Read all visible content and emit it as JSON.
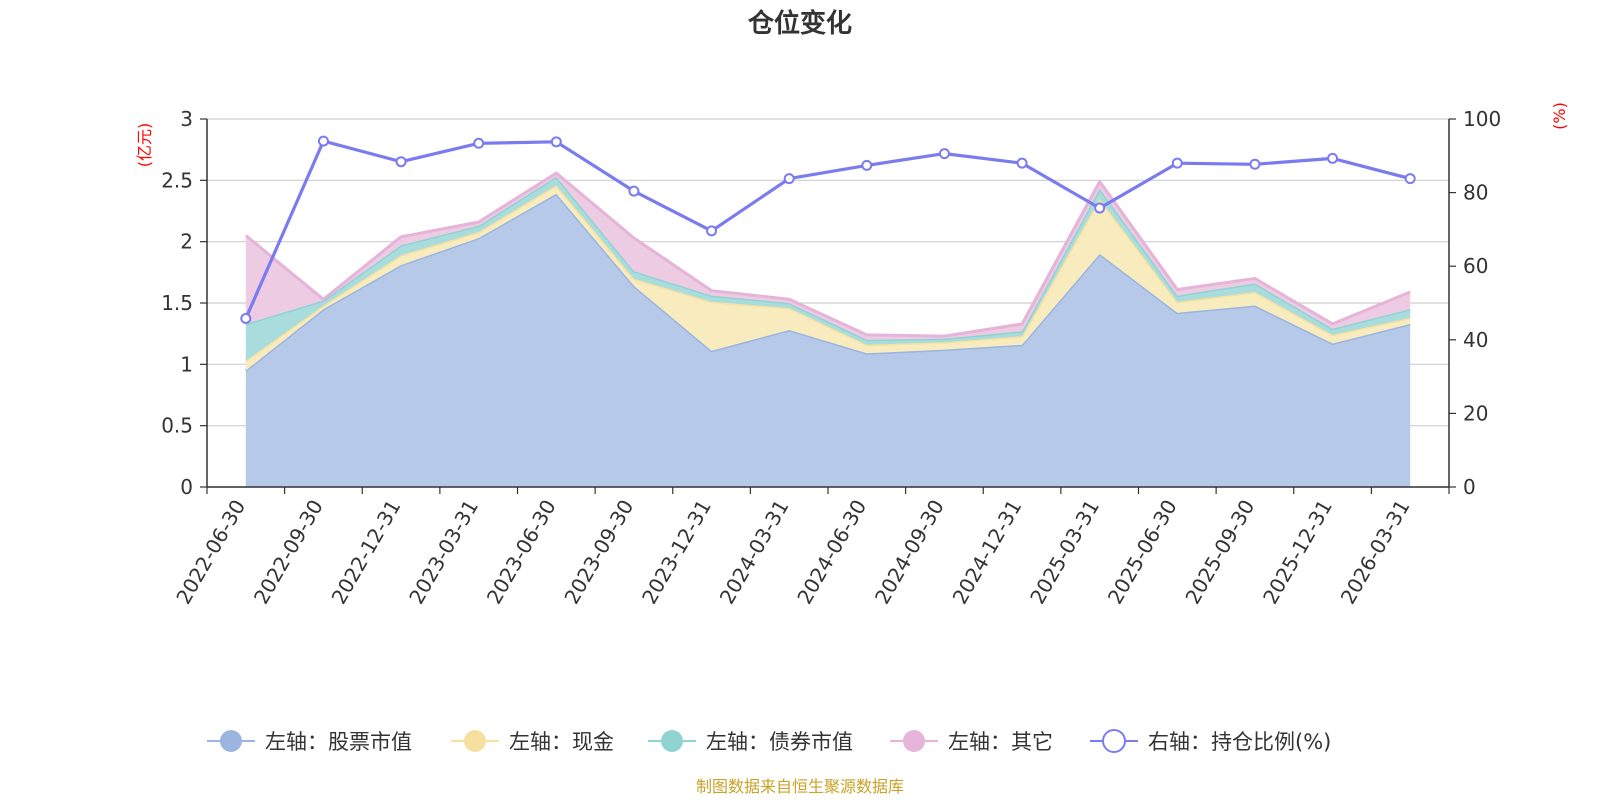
{
  "chart_data": {
    "type": "area",
    "title": "仓位变化",
    "categories": [
      "2022-06-30",
      "2022-09-30",
      "2022-12-31",
      "2023-03-31",
      "2023-06-30",
      "2023-09-30",
      "2023-12-31",
      "2024-03-31",
      "2024-06-30",
      "2024-09-30",
      "2024-12-31",
      "2025-03-31",
      "2025-06-30",
      "2025-09-30",
      "2025-12-31",
      "2026-03-31"
    ],
    "left_axis": {
      "unit_label": "(亿元)",
      "min": 0,
      "max": 3,
      "ticks": [
        "0",
        "0.5",
        "1",
        "1.5",
        "2",
        "2.5",
        "3"
      ],
      "tick_values": [
        0,
        0.5,
        1,
        1.5,
        2,
        2.5,
        3
      ]
    },
    "right_axis": {
      "unit_label": "(%)",
      "min": 0,
      "max": 100,
      "ticks": [
        "0",
        "20",
        "40",
        "60",
        "80",
        "100"
      ],
      "tick_values": [
        0,
        20,
        40,
        60,
        80,
        100
      ]
    },
    "series": [
      {
        "name": "左轴：股票市值",
        "axis": "left",
        "kind": "stacked-area",
        "color": "#9bb5e0",
        "fill": "#b6c9e9",
        "values": [
          0.95,
          1.45,
          1.81,
          2.03,
          2.39,
          1.64,
          1.11,
          1.28,
          1.09,
          1.12,
          1.16,
          1.9,
          1.42,
          1.48,
          1.17,
          1.33
        ]
      },
      {
        "name": "左轴：现金",
        "axis": "left",
        "kind": "stacked-area",
        "color": "#f6e0a0",
        "fill": "#f8ecbf",
        "values": [
          0.08,
          0.03,
          0.08,
          0.05,
          0.07,
          0.06,
          0.4,
          0.18,
          0.07,
          0.06,
          0.07,
          0.45,
          0.09,
          0.11,
          0.07,
          0.05
        ]
      },
      {
        "name": "左轴：债券市值",
        "axis": "left",
        "kind": "stacked-area",
        "color": "#8fd3d3",
        "fill": "#a9dcdc",
        "values": [
          0.3,
          0.04,
          0.08,
          0.05,
          0.07,
          0.06,
          0.05,
          0.04,
          0.04,
          0.03,
          0.04,
          0.08,
          0.05,
          0.07,
          0.05,
          0.07
        ]
      },
      {
        "name": "左轴：其它",
        "axis": "left",
        "kind": "stacked-area",
        "color": "#e6b3d9",
        "fill": "#edcbe3",
        "values": [
          0.72,
          0.01,
          0.07,
          0.03,
          0.03,
          0.27,
          0.04,
          0.03,
          0.04,
          0.02,
          0.06,
          0.06,
          0.05,
          0.04,
          0.04,
          0.14
        ]
      },
      {
        "name": "右轴：持仓比例(%)",
        "axis": "right",
        "kind": "line",
        "color": "#7b7bf0",
        "values": [
          45.8,
          94.0,
          88.4,
          93.4,
          93.8,
          80.4,
          69.6,
          83.8,
          87.4,
          90.6,
          88.0,
          75.8,
          88.0,
          87.7,
          89.3,
          83.8
        ]
      }
    ],
    "legend_position": "bottom",
    "grid": true,
    "source_note": "制图数据来自恒生聚源数据库"
  }
}
